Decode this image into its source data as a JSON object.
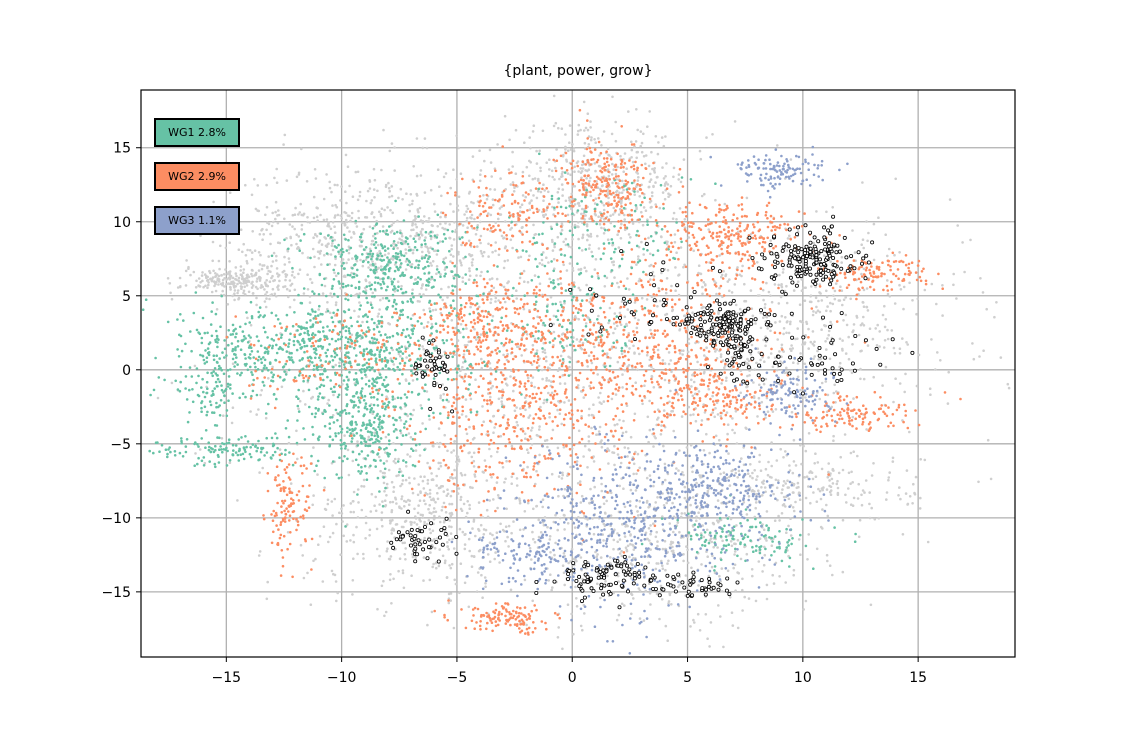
{
  "chart_data": {
    "type": "scatter",
    "title": "{plant, power, grow}",
    "xlabel": "",
    "ylabel": "",
    "xlim": [
      -18.7,
      19.2
    ],
    "ylim": [
      -19.4,
      18.9
    ],
    "x_ticks": [
      -15,
      -10,
      -5,
      0,
      5,
      10,
      15
    ],
    "y_ticks": [
      -15,
      -10,
      -5,
      0,
      5,
      10,
      15
    ],
    "x_tick_labels": [
      "−15",
      "−10",
      "−5",
      "0",
      "5",
      "10",
      "15"
    ],
    "y_tick_labels": [
      "−15",
      "−10",
      "−5",
      "0",
      "5",
      "10",
      "15"
    ],
    "grid": true,
    "legend_position": "upper-left",
    "series": [
      {
        "name": "WG1 2.8%",
        "label": "WG1 2.8%",
        "color": "#66c2a5",
        "clusters": [
          {
            "cx": -10.5,
            "cy": 1.5,
            "sx": 3.2,
            "sy": 1.6,
            "w": 6
          },
          {
            "cx": -9.0,
            "cy": -3.5,
            "sx": 1.2,
            "sy": 2.0,
            "w": 3
          },
          {
            "cx": -8.0,
            "cy": 7.0,
            "sx": 1.8,
            "sy": 1.5,
            "w": 3
          },
          {
            "cx": -15.5,
            "cy": -1.0,
            "sx": 0.9,
            "sy": 2.0,
            "w": 1
          },
          {
            "cx": -15.0,
            "cy": -5.5,
            "sx": 1.5,
            "sy": 0.5,
            "w": 1
          },
          {
            "cx": 1.5,
            "cy": 9.5,
            "sx": 2.0,
            "sy": 2.0,
            "w": 1
          },
          {
            "cx": 0.0,
            "cy": 3.5,
            "sx": 1.5,
            "sy": 2.0,
            "w": 1
          },
          {
            "cx": 7.5,
            "cy": -11.5,
            "sx": 1.5,
            "sy": 0.8,
            "w": 1
          }
        ]
      },
      {
        "name": "WG2 2.9%",
        "label": "WG2 2.9%",
        "color": "#fc8d62",
        "clusters": [
          {
            "cx": 1.5,
            "cy": 12.5,
            "sx": 1.0,
            "sy": 1.5,
            "w": 2
          },
          {
            "cx": 3.0,
            "cy": 1.5,
            "sx": 3.0,
            "sy": 3.0,
            "w": 5
          },
          {
            "cx": -2.5,
            "cy": -3.0,
            "sx": 2.5,
            "sy": 3.0,
            "w": 3
          },
          {
            "cx": -3.5,
            "cy": 3.0,
            "sx": 1.5,
            "sy": 1.5,
            "w": 2
          },
          {
            "cx": 7.0,
            "cy": 9.0,
            "sx": 1.5,
            "sy": 1.2,
            "w": 2
          },
          {
            "cx": 13.0,
            "cy": 6.5,
            "sx": 1.2,
            "sy": 0.6,
            "w": 1
          },
          {
            "cx": 12.0,
            "cy": -3.0,
            "sx": 1.5,
            "sy": 0.6,
            "w": 1
          },
          {
            "cx": -12.3,
            "cy": -9.5,
            "sx": 0.5,
            "sy": 1.8,
            "w": 1
          },
          {
            "cx": -2.8,
            "cy": -16.8,
            "sx": 1.0,
            "sy": 0.5,
            "w": 1
          },
          {
            "cx": 6.5,
            "cy": -2.0,
            "sx": 1.5,
            "sy": 1.0,
            "w": 1
          },
          {
            "cx": -10.0,
            "cy": 1.0,
            "sx": 2.0,
            "sy": 1.5,
            "w": 1
          },
          {
            "cx": -3.0,
            "cy": 11.0,
            "sx": 1.2,
            "sy": 1.3,
            "w": 1
          }
        ]
      },
      {
        "name": "WG3 1.1%",
        "label": "WG3 1.1%",
        "color": "#8da0cb",
        "clusters": [
          {
            "cx": 2.5,
            "cy": -10.5,
            "sx": 2.5,
            "sy": 2.8,
            "w": 4
          },
          {
            "cx": 6.5,
            "cy": -8.0,
            "sx": 1.8,
            "sy": 1.5,
            "w": 2
          },
          {
            "cx": 9.0,
            "cy": 13.5,
            "sx": 1.0,
            "sy": 0.6,
            "w": 1
          },
          {
            "cx": -1.5,
            "cy": -12.5,
            "sx": 1.5,
            "sy": 1.0,
            "w": 1
          },
          {
            "cx": 9.5,
            "cy": -1.5,
            "sx": 1.0,
            "sy": 1.0,
            "w": 1
          }
        ]
      }
    ],
    "background_series": {
      "color": "#cfcfcf",
      "clusters": [
        {
          "cx": 0.0,
          "cy": 0.0,
          "sx": 6.5,
          "sy": 6.5,
          "w": 6
        },
        {
          "cx": -8.5,
          "cy": 9.0,
          "sx": 3.5,
          "sy": 2.5,
          "w": 3
        },
        {
          "cx": -6.5,
          "cy": -10.0,
          "sx": 2.5,
          "sy": 2.5,
          "w": 2
        },
        {
          "cx": 10.0,
          "cy": 3.0,
          "sx": 3.5,
          "sy": 3.0,
          "w": 2
        },
        {
          "cx": 1.0,
          "cy": 12.5,
          "sx": 2.0,
          "sy": 2.0,
          "w": 2
        },
        {
          "cx": -14.5,
          "cy": 6.0,
          "sx": 1.2,
          "sy": 0.5,
          "w": 1
        },
        {
          "cx": 10.0,
          "cy": -8.0,
          "sx": 2.5,
          "sy": 1.2,
          "w": 1
        },
        {
          "cx": 4.0,
          "cy": -12.5,
          "sx": 3.5,
          "sy": 2.5,
          "w": 2
        }
      ]
    },
    "marked_points": {
      "color": "#000000",
      "clusters": [
        {
          "cx": 10.5,
          "cy": 7.5,
          "sx": 0.9,
          "sy": 1.0,
          "w": 4
        },
        {
          "cx": 6.5,
          "cy": 3.2,
          "sx": 0.9,
          "sy": 0.7,
          "w": 3
        },
        {
          "cx": 7.2,
          "cy": 1.0,
          "sx": 0.6,
          "sy": 1.0,
          "w": 1
        },
        {
          "cx": -6.0,
          "cy": 0.2,
          "sx": 0.5,
          "sy": 1.0,
          "w": 1
        },
        {
          "cx": -6.5,
          "cy": -11.5,
          "sx": 0.6,
          "sy": 0.8,
          "w": 1
        },
        {
          "cx": 1.5,
          "cy": -14.0,
          "sx": 1.2,
          "sy": 0.6,
          "w": 2
        },
        {
          "cx": 5.5,
          "cy": -14.5,
          "sx": 1.2,
          "sy": 0.4,
          "w": 1
        },
        {
          "cx": 3.5,
          "cy": 4.0,
          "sx": 2.0,
          "sy": 1.5,
          "w": 1
        },
        {
          "cx": 10.5,
          "cy": 0.5,
          "sx": 1.5,
          "sy": 1.0,
          "w": 1
        }
      ]
    }
  }
}
